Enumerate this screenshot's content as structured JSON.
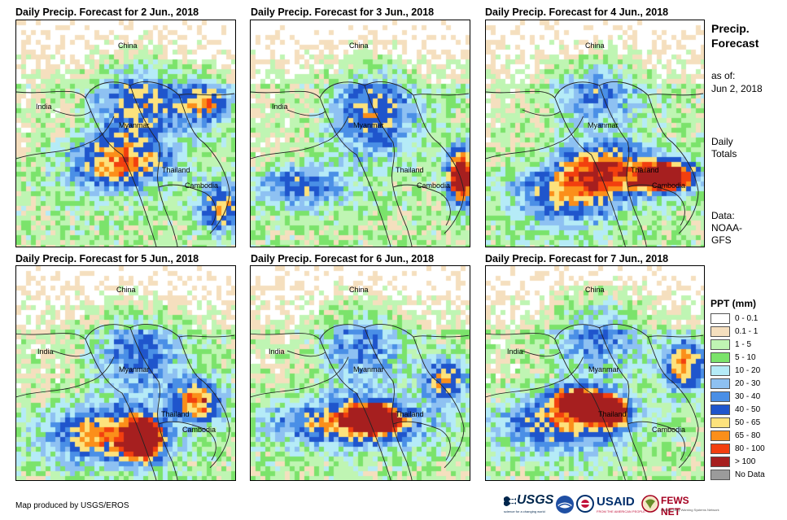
{
  "panels": [
    {
      "title": "Daily Precip. Forecast for 2 Jun., 2018",
      "labels": {
        "china": "China",
        "india": "India",
        "myanmar": "Myanmar",
        "thailand": "Thailand",
        "cambodia": "Cambodia"
      },
      "heavy": []
    },
    {
      "title": "Daily Precip. Forecast for 3 Jun., 2018",
      "labels": {
        "china": "China",
        "india": "India",
        "myanmar": "Myanmar",
        "thailand": "Thailand",
        "cambodia": "Cambodia"
      },
      "heavy": [
        "eastern Cambodia coast"
      ]
    },
    {
      "title": "Daily Precip. Forecast for 4 Jun., 2018",
      "labels": {
        "china": "China",
        "myanmar": "Myanmar",
        "thailand": "Thailand",
        "cambodia": "Cambodia"
      },
      "heavy": [
        "eastern Thailand",
        "Cambodia"
      ]
    },
    {
      "title": "Daily Precip. Forecast for 5 Jun., 2018",
      "labels": {
        "china": "China",
        "india": "India",
        "myanmar": "Myanmar",
        "thailand": "Thailand",
        "cambodia": "Cambodia"
      },
      "heavy": [
        "southern Myanmar coast"
      ]
    },
    {
      "title": "Daily Precip. Forecast for 6 Jun., 2018",
      "labels": {
        "china": "China",
        "india": "India",
        "myanmar": "Myanmar",
        "thailand": "Thailand"
      },
      "heavy": [
        "Andaman Sea",
        "southern Myanmar"
      ]
    },
    {
      "title": "Daily Precip. Forecast for 7 Jun., 2018",
      "labels": {
        "china": "China",
        "india": "India",
        "myanmar": "Myanmar",
        "thailand": "Thailand",
        "cambodia": "Cambodia"
      },
      "heavy": [
        "Bay of Bengal",
        "southern Myanmar"
      ]
    }
  ],
  "sidebar": {
    "heading_line1": "Precip.",
    "heading_line2": "Forecast",
    "asof_line1": "as of:",
    "asof_line2": "Jun 2, 2018",
    "totals_line1": "Daily",
    "totals_line2": "Totals",
    "data_line1": "Data:",
    "data_line2": "NOAA-",
    "data_line3": "GFS"
  },
  "legend": {
    "title": "PPT (mm)",
    "items": [
      {
        "label": "0 - 0.1",
        "color": "#ffffff"
      },
      {
        "label": "0.1 - 1",
        "color": "#f5dfbe"
      },
      {
        "label": "1 - 5",
        "color": "#bff5b3"
      },
      {
        "label": "5 - 10",
        "color": "#7be36b"
      },
      {
        "label": "10 - 20",
        "color": "#b5ebf7"
      },
      {
        "label": "20 - 30",
        "color": "#8ec1f2"
      },
      {
        "label": "30 - 40",
        "color": "#4a8fe6"
      },
      {
        "label": "40 - 50",
        "color": "#1f55cc"
      },
      {
        "label": "50 - 65",
        "color": "#fde27c"
      },
      {
        "label": "65 - 80",
        "color": "#fb8f1a"
      },
      {
        "label": "80 - 100",
        "color": "#f23f0f"
      },
      {
        "label": "> 100",
        "color": "#a61f1f"
      },
      {
        "label": "No Data",
        "color": "#9b9b9b"
      }
    ]
  },
  "footer": {
    "credit": "Map produced by USGS/EROS",
    "usgs": "USGS",
    "usgs_tagline": "science for a changing world",
    "usaid": "USAID",
    "usaid_tagline": "FROM THE AMERICAN PEOPLE",
    "fews": "FEWS NET",
    "fews_tagline": "Famine Early Warning Systems Network"
  }
}
